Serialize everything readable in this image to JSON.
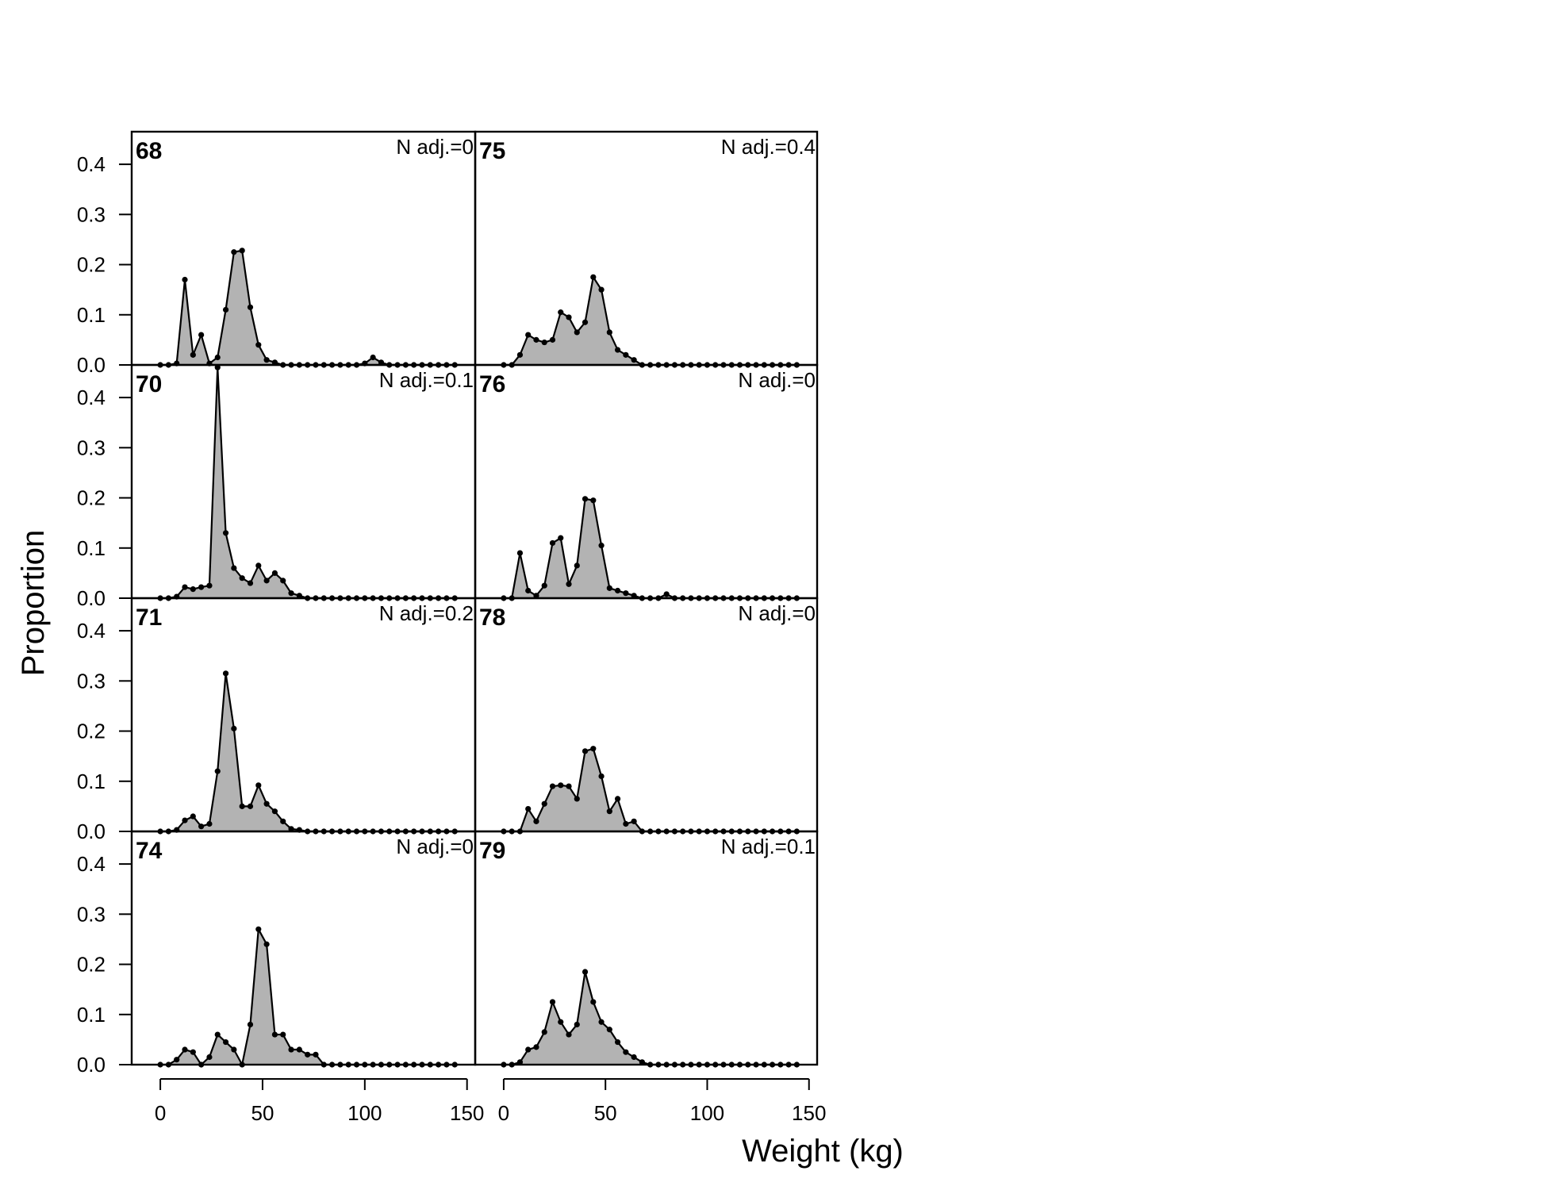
{
  "chart_data": {
    "type": "area",
    "xlabel": "Weight (kg)",
    "ylabel": "Proportion",
    "xlim": [
      -14,
      154
    ],
    "ylim": [
      0,
      0.465
    ],
    "x_ticks": [
      0,
      50,
      100,
      150
    ],
    "y_ticks": [
      0.0,
      0.1,
      0.2,
      0.3,
      0.4
    ],
    "y_tick_labels": [
      "0.0",
      "0.1",
      "0.2",
      "0.3",
      "0.4"
    ],
    "fill_color": "#b3b3b3",
    "line_color": "#000000",
    "x": [
      0,
      4,
      8,
      12,
      16,
      20,
      24,
      28,
      32,
      36,
      40,
      44,
      48,
      52,
      56,
      60,
      64,
      68,
      72,
      76,
      80,
      84,
      88,
      92,
      96,
      100,
      104,
      108,
      112,
      116,
      120,
      124,
      128,
      132,
      136,
      140,
      144
    ],
    "panels": [
      {
        "label": "68",
        "note": "N adj.=0",
        "values": [
          0,
          0,
          0.003,
          0.17,
          0.02,
          0.06,
          0.003,
          0.015,
          0.11,
          0.225,
          0.228,
          0.115,
          0.04,
          0.01,
          0.005,
          0,
          0,
          0,
          0,
          0,
          0,
          0,
          0,
          0,
          0,
          0.003,
          0.015,
          0.005,
          0,
          0,
          0,
          0,
          0,
          0,
          0,
          0,
          0
        ]
      },
      {
        "label": "70",
        "note": "N adj.=0.1",
        "values": [
          0,
          0,
          0.003,
          0.022,
          0.018,
          0.022,
          0.025,
          0.46,
          0.13,
          0.06,
          0.04,
          0.03,
          0.065,
          0.035,
          0.05,
          0.035,
          0.01,
          0.005,
          0,
          0,
          0,
          0,
          0,
          0,
          0,
          0,
          0,
          0,
          0,
          0,
          0,
          0,
          0,
          0,
          0,
          0,
          0
        ]
      },
      {
        "label": "71",
        "note": "N adj.=0.2",
        "values": [
          0,
          0,
          0.003,
          0.022,
          0.03,
          0.01,
          0.015,
          0.12,
          0.315,
          0.205,
          0.05,
          0.05,
          0.092,
          0.055,
          0.04,
          0.02,
          0.005,
          0.003,
          0,
          0,
          0,
          0,
          0,
          0,
          0,
          0,
          0,
          0,
          0,
          0,
          0,
          0,
          0,
          0,
          0,
          0,
          0
        ]
      },
      {
        "label": "74",
        "note": "N adj.=0",
        "values": [
          0,
          0,
          0.01,
          0.03,
          0.025,
          0,
          0.015,
          0.06,
          0.045,
          0.03,
          0,
          0.08,
          0.27,
          0.24,
          0.06,
          0.06,
          0.03,
          0.03,
          0.02,
          0.02,
          0,
          0,
          0,
          0,
          0,
          0,
          0,
          0,
          0,
          0,
          0,
          0,
          0,
          0,
          0,
          0,
          0
        ]
      },
      {
        "label": "75",
        "note": "N adj.=0.4",
        "values": [
          0,
          0,
          0.02,
          0.06,
          0.05,
          0.045,
          0.05,
          0.105,
          0.095,
          0.065,
          0.085,
          0.175,
          0.15,
          0.065,
          0.03,
          0.02,
          0.01,
          0,
          0,
          0,
          0,
          0,
          0,
          0,
          0,
          0,
          0,
          0,
          0,
          0,
          0,
          0,
          0,
          0,
          0,
          0,
          0
        ]
      },
      {
        "label": "76",
        "note": "N adj.=0",
        "values": [
          0,
          0,
          0.09,
          0.015,
          0.005,
          0.025,
          0.11,
          0.12,
          0.028,
          0.065,
          0.198,
          0.195,
          0.105,
          0.02,
          0.015,
          0.01,
          0.005,
          0,
          0,
          0,
          0.008,
          0,
          0,
          0,
          0,
          0,
          0,
          0,
          0,
          0,
          0,
          0,
          0,
          0,
          0,
          0,
          0
        ]
      },
      {
        "label": "78",
        "note": "N adj.=0",
        "values": [
          0,
          0,
          0,
          0.045,
          0.02,
          0.055,
          0.09,
          0.092,
          0.09,
          0.065,
          0.16,
          0.165,
          0.11,
          0.04,
          0.065,
          0.015,
          0.02,
          0,
          0,
          0,
          0,
          0,
          0,
          0,
          0,
          0,
          0,
          0,
          0,
          0,
          0,
          0,
          0,
          0,
          0,
          0,
          0
        ]
      },
      {
        "label": "79",
        "note": "N adj.=0.1",
        "values": [
          0,
          0,
          0.005,
          0.03,
          0.035,
          0.065,
          0.125,
          0.085,
          0.06,
          0.08,
          0.185,
          0.125,
          0.085,
          0.07,
          0.045,
          0.025,
          0.015,
          0.005,
          0,
          0,
          0,
          0,
          0,
          0,
          0,
          0,
          0,
          0,
          0,
          0,
          0,
          0,
          0,
          0,
          0,
          0,
          0
        ]
      }
    ]
  }
}
